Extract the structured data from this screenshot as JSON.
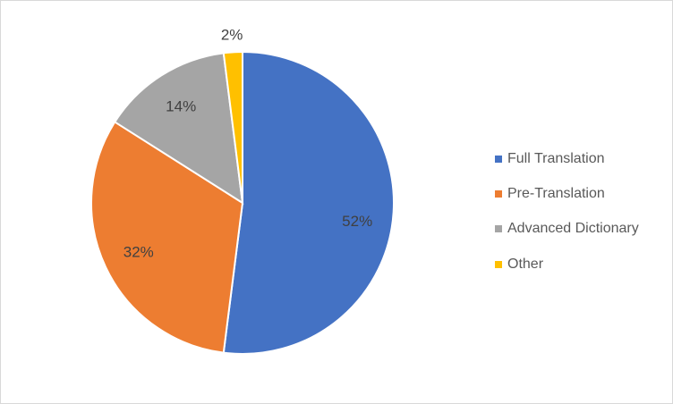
{
  "chart_data": {
    "type": "pie",
    "start_angle": "12 o'clock",
    "direction": "clockwise",
    "legend_position": "right",
    "slices": [
      {
        "name": "Full Translation",
        "value": 52,
        "label": "52%",
        "color": "#4472C4"
      },
      {
        "name": "Pre-Translation",
        "value": 32,
        "label": "32%",
        "color": "#ED7D31"
      },
      {
        "name": "Advanced Dictionary",
        "value": 14,
        "label": "14%",
        "color": "#A5A5A5"
      },
      {
        "name": "Other",
        "value": 2,
        "label": "2%",
        "color": "#FFC000"
      }
    ]
  }
}
